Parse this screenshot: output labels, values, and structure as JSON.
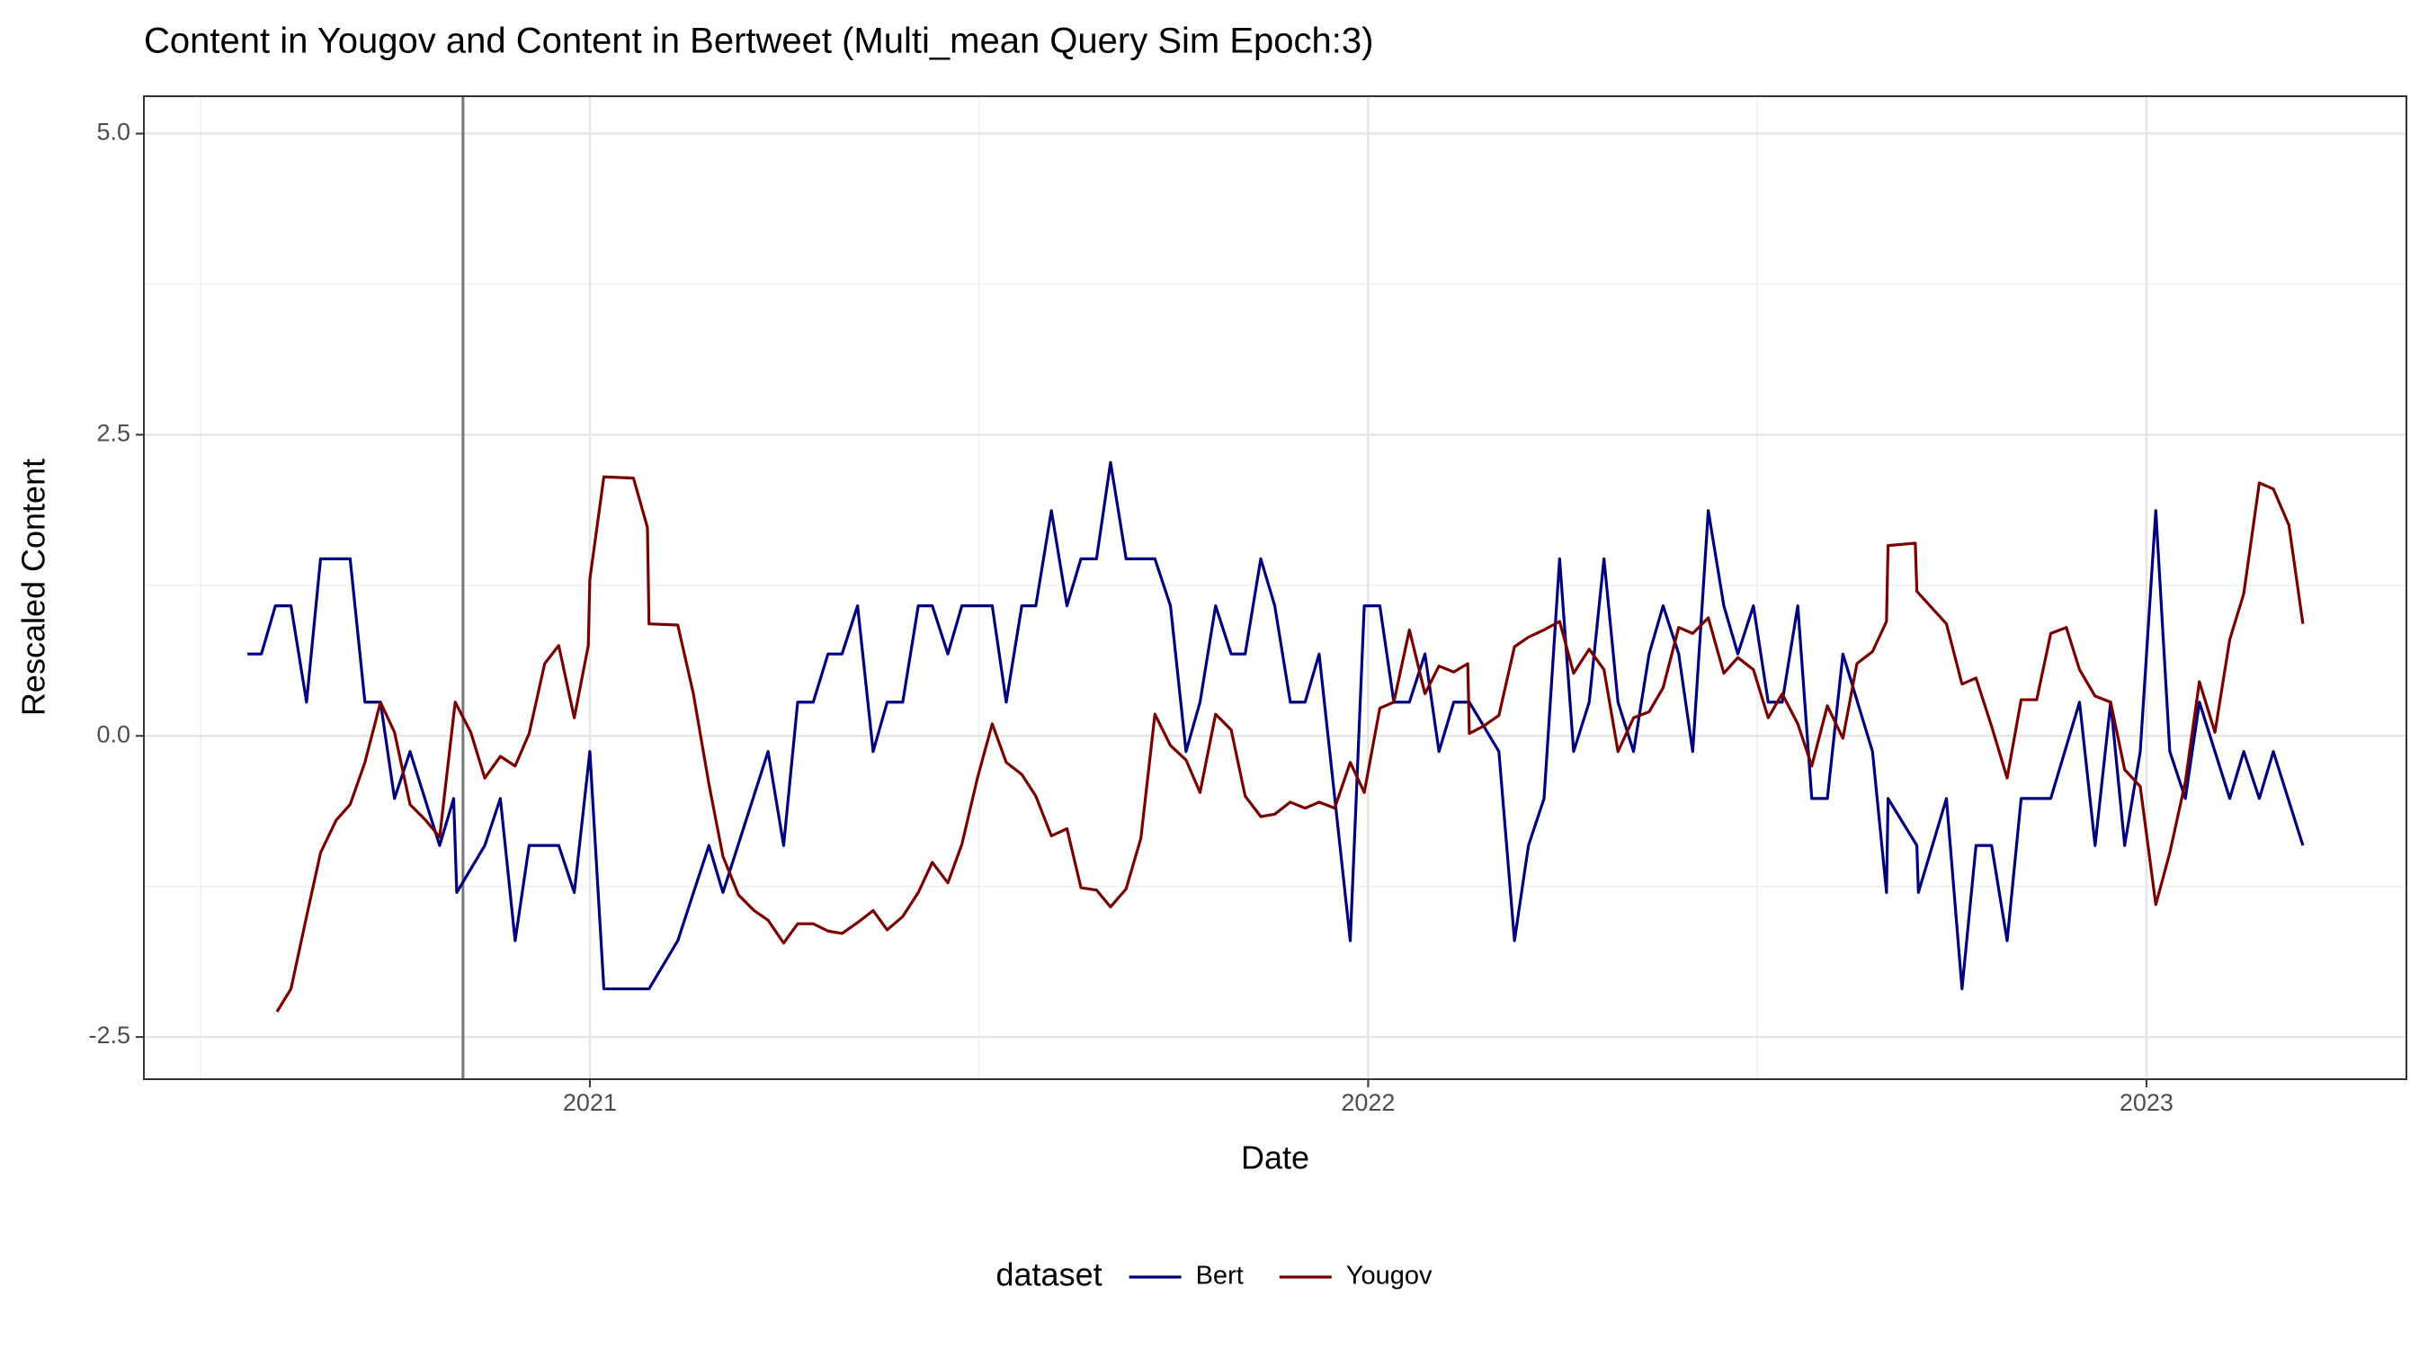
{
  "chart_data": {
    "type": "line",
    "title": "Content in Yougov and Content in Bertweet (Multi_mean Query Sim Epoch:3)",
    "xlabel": "Date",
    "ylabel": "Rescaled  Content",
    "legend_title": "dataset",
    "legend": "bottom",
    "grid": true,
    "minor_grid": true,
    "xlim": [
      2020.427,
      2023.334
    ],
    "xticks": [
      2021,
      2022,
      2023
    ],
    "ylim": [
      -2.85,
      5.31
    ],
    "yticks": [
      {
        "value": -2.5,
        "label": "-2.5"
      },
      {
        "value": 0,
        "label": "0.0"
      },
      {
        "value": 2.5,
        "label": "2.5"
      },
      {
        "value": 5,
        "label": "5.0"
      }
    ],
    "vline": 2020.837,
    "series": [
      {
        "name": "Bert",
        "color": "#00007f",
        "x": [
          2020.56,
          2020.578,
          2020.596,
          2020.616,
          2020.636,
          2020.654,
          2020.692,
          2020.711,
          2020.731,
          2020.749,
          2020.769,
          2020.807,
          2020.825,
          2020.829,
          2020.865,
          2020.885,
          2020.904,
          2020.922,
          2020.96,
          2020.98,
          2021.0,
          2021.018,
          2021.076,
          2021.113,
          2021.153,
          2021.171,
          2021.229,
          2021.249,
          2021.267,
          2021.287,
          2021.306,
          2021.324,
          2021.344,
          2021.364,
          2021.382,
          2021.402,
          2021.422,
          2021.44,
          2021.46,
          2021.478,
          2021.517,
          2021.535,
          2021.555,
          2021.573,
          2021.593,
          2021.613,
          2021.631,
          2021.651,
          2021.669,
          2021.689,
          2021.726,
          2021.746,
          2021.766,
          2021.784,
          2021.804,
          2021.824,
          2021.842,
          2021.862,
          2021.88,
          2021.9,
          2021.919,
          2021.937,
          2021.977,
          2021.995,
          2022.015,
          2022.033,
          2022.053,
          2022.073,
          2022.091,
          2022.11,
          2022.13,
          2022.168,
          2022.188,
          2022.206,
          2022.226,
          2022.246,
          2022.264,
          2022.284,
          2022.303,
          2022.321,
          2022.341,
          2022.361,
          2022.379,
          2022.399,
          2022.417,
          2022.437,
          2022.457,
          2022.475,
          2022.495,
          2022.514,
          2022.532,
          2022.552,
          2022.57,
          2022.59,
          2022.61,
          2022.648,
          2022.666,
          2022.668,
          2022.705,
          2022.707,
          2022.743,
          2022.763,
          2022.781,
          2022.801,
          2022.821,
          2022.839,
          2022.877,
          2022.914,
          2022.934,
          2022.954,
          2022.972,
          2022.992,
          2023.012,
          2023.03,
          2023.05,
          2023.068,
          2023.107,
          2023.125,
          2023.145,
          2023.163,
          2023.201
        ],
        "values": [
          0.68,
          0.68,
          1.08,
          1.08,
          0.28,
          1.47,
          1.47,
          0.28,
          0.28,
          -0.52,
          -0.13,
          -0.91,
          -0.52,
          -1.3,
          -0.91,
          -0.52,
          -1.7,
          -0.91,
          -0.91,
          -1.3,
          -0.13,
          -2.1,
          -2.1,
          -1.7,
          -0.91,
          -1.3,
          -0.13,
          -0.91,
          0.28,
          0.28,
          0.68,
          0.68,
          1.08,
          -0.13,
          0.28,
          0.28,
          1.08,
          1.08,
          0.68,
          1.08,
          1.08,
          0.28,
          1.08,
          1.08,
          1.87,
          1.08,
          1.47,
          1.47,
          2.27,
          1.47,
          1.47,
          1.08,
          -0.13,
          0.28,
          1.08,
          0.68,
          0.68,
          1.47,
          1.08,
          0.28,
          0.28,
          0.68,
          -1.7,
          1.08,
          1.08,
          0.28,
          0.28,
          0.68,
          -0.13,
          0.28,
          0.28,
          -0.13,
          -1.7,
          -0.91,
          -0.52,
          1.47,
          -0.13,
          0.28,
          1.47,
          0.28,
          -0.13,
          0.68,
          1.08,
          0.68,
          -0.13,
          1.87,
          1.08,
          0.68,
          1.08,
          0.28,
          0.28,
          1.08,
          -0.52,
          -0.52,
          0.68,
          -0.13,
          -1.3,
          -0.52,
          -0.91,
          -1.3,
          -0.52,
          -2.1,
          -0.91,
          -0.91,
          -1.7,
          -0.52,
          -0.52,
          0.28,
          -0.91,
          0.28,
          -0.91,
          -0.13,
          1.87,
          -0.13,
          -0.52,
          0.28,
          -0.52,
          -0.13,
          -0.52,
          -0.13,
          -0.91
        ]
      },
      {
        "name": "Yougov",
        "color": "#7a0000",
        "x": [
          2020.598,
          2020.616,
          2020.636,
          2020.654,
          2020.674,
          2020.692,
          2020.711,
          2020.731,
          2020.749,
          2020.769,
          2020.789,
          2020.807,
          2020.827,
          2020.847,
          2020.865,
          2020.885,
          2020.904,
          2020.922,
          2020.942,
          2020.96,
          2020.98,
          2020.998,
          2021.0,
          2021.018,
          2021.056,
          2021.074,
          2021.076,
          2021.113,
          2021.133,
          2021.153,
          2021.171,
          2021.191,
          2021.211,
          2021.229,
          2021.249,
          2021.267,
          2021.287,
          2021.306,
          2021.324,
          2021.344,
          2021.364,
          2021.382,
          2021.402,
          2021.422,
          2021.44,
          2021.46,
          2021.478,
          2021.498,
          2021.517,
          2021.535,
          2021.555,
          2021.573,
          2021.593,
          2021.613,
          2021.631,
          2021.651,
          2021.669,
          2021.689,
          2021.708,
          2021.726,
          2021.746,
          2021.766,
          2021.784,
          2021.804,
          2021.824,
          2021.842,
          2021.862,
          2021.88,
          2021.9,
          2021.919,
          2021.937,
          2021.957,
          2021.977,
          2021.995,
          2022.015,
          2022.033,
          2022.053,
          2022.073,
          2022.091,
          2022.11,
          2022.128,
          2022.13,
          2022.148,
          2022.168,
          2022.188,
          2022.206,
          2022.226,
          2022.246,
          2022.264,
          2022.284,
          2022.303,
          2022.321,
          2022.341,
          2022.361,
          2022.379,
          2022.399,
          2022.417,
          2022.437,
          2022.457,
          2022.475,
          2022.495,
          2022.514,
          2022.532,
          2022.552,
          2022.57,
          2022.59,
          2022.61,
          2022.628,
          2022.648,
          2022.666,
          2022.668,
          2022.703,
          2022.705,
          2022.743,
          2022.763,
          2022.781,
          2022.801,
          2022.821,
          2022.839,
          2022.859,
          2022.877,
          2022.897,
          2022.914,
          2022.934,
          2022.954,
          2022.972,
          2022.992,
          2023.012,
          2023.03,
          2023.05,
          2023.068,
          2023.088,
          2023.107,
          2023.125,
          2023.145,
          2023.163,
          2023.183,
          2023.201
        ],
        "values": [
          -2.29,
          -2.1,
          -1.5,
          -0.97,
          -0.7,
          -0.57,
          -0.22,
          0.28,
          0.03,
          -0.57,
          -0.7,
          -0.84,
          0.28,
          0.03,
          -0.35,
          -0.17,
          -0.25,
          0.02,
          0.6,
          0.75,
          0.15,
          0.75,
          1.3,
          2.15,
          2.14,
          1.73,
          0.93,
          0.92,
          0.35,
          -0.4,
          -1.0,
          -1.32,
          -1.45,
          -1.53,
          -1.72,
          -1.56,
          -1.56,
          -1.62,
          -1.64,
          -1.55,
          -1.45,
          -1.61,
          -1.5,
          -1.3,
          -1.05,
          -1.22,
          -0.9,
          -0.35,
          0.1,
          -0.22,
          -0.32,
          -0.5,
          -0.83,
          -0.77,
          -1.26,
          -1.28,
          -1.42,
          -1.27,
          -0.85,
          0.18,
          -0.08,
          -0.2,
          -0.47,
          0.18,
          0.05,
          -0.5,
          -0.67,
          -0.65,
          -0.55,
          -0.6,
          -0.55,
          -0.6,
          -0.22,
          -0.47,
          0.23,
          0.28,
          0.88,
          0.35,
          0.58,
          0.53,
          0.6,
          0.02,
          0.08,
          0.17,
          0.74,
          0.82,
          0.88,
          0.95,
          0.52,
          0.72,
          0.55,
          -0.13,
          0.15,
          0.2,
          0.4,
          0.9,
          0.85,
          0.98,
          0.52,
          0.65,
          0.55,
          0.15,
          0.35,
          0.1,
          -0.25,
          0.25,
          -0.02,
          0.6,
          0.7,
          0.95,
          1.58,
          1.6,
          1.2,
          0.93,
          0.43,
          0.48,
          0.08,
          -0.35,
          0.3,
          0.3,
          0.85,
          0.9,
          0.55,
          0.33,
          0.28,
          -0.28,
          -0.42,
          -1.4,
          -0.97,
          -0.38,
          0.45,
          0.03,
          0.8,
          1.18,
          2.1,
          2.05,
          1.75,
          0.93
        ]
      }
    ]
  }
}
